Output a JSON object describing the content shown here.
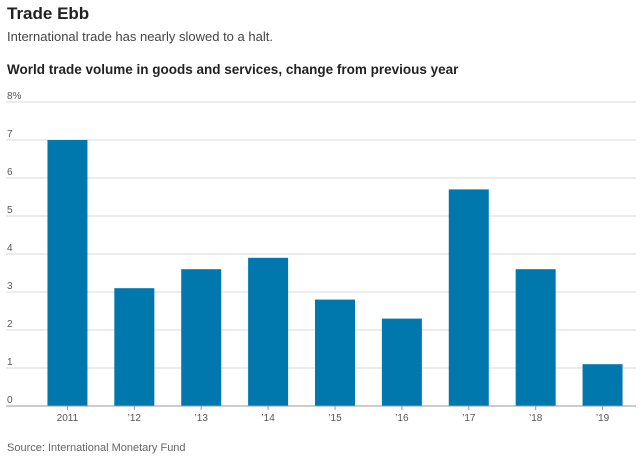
{
  "header": {
    "title": "Trade Ebb",
    "subtitle": "International trade has nearly slowed to a halt."
  },
  "footer": {
    "source": "Source: International Monetary Fund"
  },
  "chart_data": {
    "type": "bar",
    "title": "World trade volume in goods and services, change from previous year",
    "xlabel": "",
    "ylabel": "",
    "categories": [
      "2011",
      "’12",
      "’13",
      "’14",
      "’15",
      "’16",
      "’17",
      "’18",
      "’19"
    ],
    "values": [
      7.0,
      3.1,
      3.6,
      3.9,
      2.8,
      2.3,
      5.7,
      3.6,
      1.1
    ],
    "ylim": [
      0,
      8
    ],
    "yticks": [
      0,
      1,
      2,
      3,
      4,
      5,
      6,
      7,
      8
    ],
    "ytick_labels": [
      "0",
      "1",
      "2",
      "3",
      "4",
      "5",
      "6",
      "7",
      "8%"
    ],
    "grid": true,
    "legend": "none",
    "bar_color": "#0077ad",
    "grid_color": "#d9d9d9",
    "axis_color": "#999999"
  }
}
